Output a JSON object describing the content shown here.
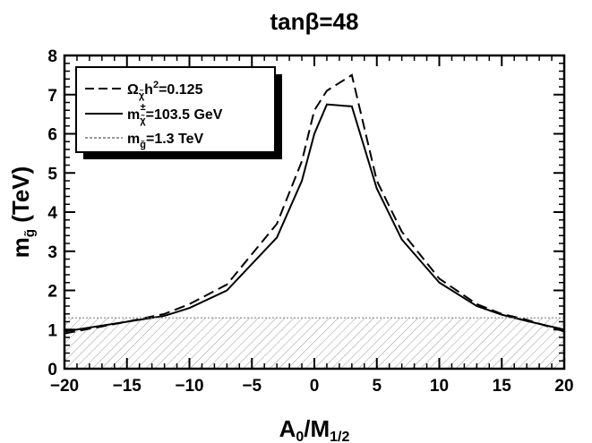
{
  "chart_data": {
    "type": "line",
    "title": "tanβ=48",
    "xlabel": {
      "main": "A",
      "sub0": "0",
      "mid": "/M",
      "sub1": "1/2"
    },
    "ylabel": {
      "main": "m",
      "sub": "g̃",
      "unit": " (TeV)"
    },
    "xlim": [
      -20,
      20
    ],
    "ylim": [
      0,
      8
    ],
    "xticks": [
      -20,
      -15,
      -10,
      -5,
      0,
      5,
      10,
      15,
      20
    ],
    "yticks": [
      0,
      1,
      2,
      3,
      4,
      5,
      6,
      7,
      8
    ],
    "grid": false,
    "legend_position": "top-left",
    "series": [
      {
        "style": "dashed",
        "legend": {
          "main": "Ω",
          "sub": "χ̃",
          "rest": "h",
          "sup": "2",
          "tail": "=0.125"
        },
        "x": [
          -20,
          -15,
          -12,
          -10,
          -7,
          -3,
          -1,
          0,
          1,
          3,
          5,
          7,
          10,
          13,
          15,
          17,
          20
        ],
        "y": [
          0.9,
          1.2,
          1.4,
          1.65,
          2.15,
          3.7,
          5.3,
          6.6,
          7.1,
          7.5,
          4.8,
          3.5,
          2.3,
          1.65,
          1.4,
          1.25,
          0.95
        ]
      },
      {
        "style": "solid",
        "legend": {
          "main": "m",
          "sub": "χ̃",
          "sup": "±",
          "tail": "=103.5 GeV"
        },
        "x": [
          -20,
          -15,
          -12,
          -10,
          -7,
          -3,
          -1,
          0,
          1,
          3,
          5,
          7,
          10,
          13,
          15,
          17,
          20
        ],
        "y": [
          0.95,
          1.2,
          1.35,
          1.55,
          2.0,
          3.35,
          4.8,
          6.0,
          6.75,
          6.7,
          4.6,
          3.3,
          2.2,
          1.6,
          1.38,
          1.22,
          1.0
        ]
      },
      {
        "style": "dotted",
        "legend": {
          "main": "m",
          "sub": "g̃",
          "tail": "=1.3 TeV"
        },
        "x": [
          -20,
          20
        ],
        "y": [
          1.3,
          1.3
        ]
      }
    ],
    "shaded_region": {
      "y_from": 0,
      "y_to": 1.3,
      "pattern": "hatched"
    },
    "colors": {
      "line": "#000000",
      "dotted": "#777777",
      "hatch": "#999999"
    }
  }
}
